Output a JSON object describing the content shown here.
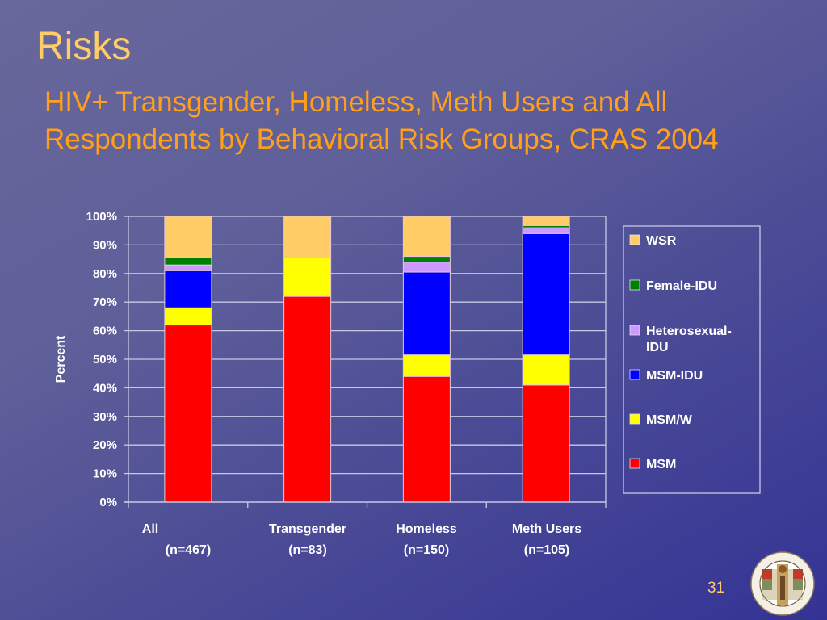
{
  "slide": {
    "title": "Risks",
    "subtitle_lines": [
      "HIV+ Transgender, Homeless, Meth Users and All",
      "Respondents by Behavioral Risk Groups, CRAS 2004"
    ],
    "page_number": "31",
    "logo": {
      "icon": "county-seal-icon",
      "top_text": "COUNTY OF LOS ANGELES",
      "bottom_text": "CALIFORNIA"
    },
    "colors": {
      "title": "#ffcc66",
      "subtitle": "#ff9f1a"
    }
  },
  "chart_data": {
    "type": "bar",
    "stacked": true,
    "percent_stacked": true,
    "title": "HIV+ Transgender, Homeless, Meth Users and All Respondents by Behavioral Risk Groups, CRAS 2004",
    "xlabel": "",
    "ylabel": "Percent",
    "ylim": [
      0,
      100
    ],
    "yticks": [
      "0%",
      "10%",
      "20%",
      "30%",
      "40%",
      "50%",
      "60%",
      "70%",
      "80%",
      "90%",
      "100%"
    ],
    "grid": true,
    "legend_position": "right",
    "categories": [
      {
        "name": "All",
        "n": "(n=467)"
      },
      {
        "name": "Transgender",
        "n": "(n=83)"
      },
      {
        "name": "Homeless",
        "n": "(n=150)"
      },
      {
        "name": "Meth Users",
        "n": "(n=105)"
      }
    ],
    "series": [
      {
        "name": "MSM",
        "color": "#ff0000",
        "values": [
          62,
          72,
          44,
          41
        ]
      },
      {
        "name": "MSM/W",
        "color": "#ffff00",
        "values": [
          6,
          13.5,
          7.5,
          10.5
        ]
      },
      {
        "name": "MSM-IDU",
        "color": "#0000ff",
        "values": [
          13,
          0,
          29,
          42.5
        ]
      },
      {
        "name": "Heterosexual-IDU",
        "color": "#cc99ff",
        "values": [
          2,
          0,
          3.5,
          2
        ]
      },
      {
        "name": "Female-IDU",
        "color": "#008000",
        "values": [
          2.5,
          0,
          2,
          0.8
        ]
      },
      {
        "name": "WSR",
        "color": "#ffcc66",
        "values": [
          14.5,
          14.5,
          14,
          3.2
        ]
      }
    ],
    "legend_order": [
      "WSR",
      "Female-IDU",
      "Heterosexual-IDU",
      "MSM-IDU",
      "MSM/W",
      "MSM"
    ],
    "legend_labels": {
      "WSR": [
        "WSR"
      ],
      "Female-IDU": [
        "Female-IDU"
      ],
      "Heterosexual-IDU": [
        "Heterosexual-",
        "IDU"
      ],
      "MSM-IDU": [
        "MSM-IDU"
      ],
      "MSM/W": [
        "MSM/W"
      ],
      "MSM": [
        "MSM"
      ]
    }
  }
}
